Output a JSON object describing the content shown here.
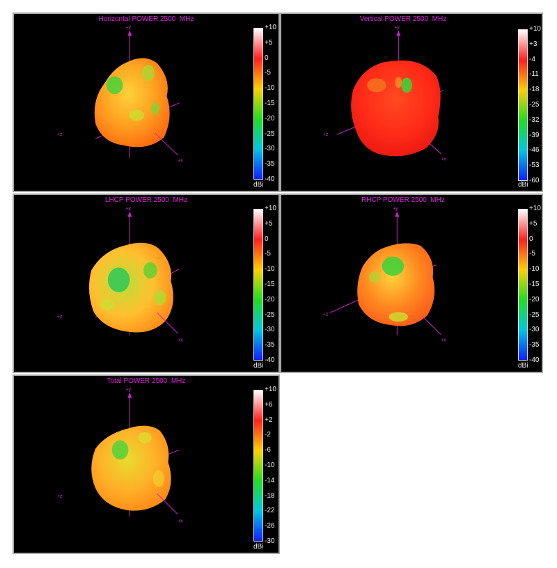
{
  "colors": {
    "axis": "#d020d0",
    "title": "#e020e0",
    "panel_bg": "#000000",
    "panel_border": "#a8a8a8",
    "colorbar_stops": [
      "#ffffff",
      "#ff2020",
      "#ffd000",
      "#22dd22",
      "#00c8e0",
      "#1020ff"
    ]
  },
  "axis_labels": {
    "y": "+y",
    "z": "+z",
    "x": "+x"
  },
  "panels": [
    {
      "id": "horizontal",
      "title": "Horizontal POWER 2500  MHz",
      "unit": "dBi",
      "colorbar_ticks": [
        "+10",
        "+5",
        "0",
        "-5",
        "-10",
        "-15",
        "-20",
        "-25",
        "-30",
        "-35",
        "-40"
      ],
      "dominant_color": "orange"
    },
    {
      "id": "vertical",
      "title": "Vertical POWER 2500  MHz",
      "unit": "dBi",
      "colorbar_ticks": [
        "+10",
        "+3",
        "-4",
        "-11",
        "-18",
        "-25",
        "-32",
        "-39",
        "-46",
        "-53",
        "-60"
      ],
      "dominant_color": "red"
    },
    {
      "id": "lhcp",
      "title": "LHCP POWER 2500  MHz",
      "unit": "dBi",
      "colorbar_ticks": [
        "+10",
        "+5",
        "0",
        "-5",
        "-10",
        "-15",
        "-20",
        "-25",
        "-30",
        "-35",
        "-40"
      ],
      "dominant_color": "yellow-green"
    },
    {
      "id": "rhcp",
      "title": "RHCP POWER 2500  MHz",
      "unit": "dBi",
      "colorbar_ticks": [
        "+10",
        "+5",
        "0",
        "-5",
        "-10",
        "-15",
        "-20",
        "-25",
        "-30",
        "-35",
        "-40"
      ],
      "dominant_color": "orange"
    },
    {
      "id": "total",
      "title": "Total POWER 2500  MHz",
      "unit": "dBi",
      "colorbar_ticks": [
        "+10",
        "+6",
        "+2",
        "-2",
        "-6",
        "-10",
        "-14",
        "-18",
        "-22",
        "-26",
        "-30"
      ],
      "dominant_color": "orange-yellow"
    }
  ],
  "chart_data": [
    {
      "type": "other",
      "title": "Horizontal POWER 2500  MHz",
      "colorbar_label": "dBi",
      "colorbar_range": [
        -40,
        10
      ]
    },
    {
      "type": "other",
      "title": "Vertical POWER 2500  MHz",
      "colorbar_label": "dBi",
      "colorbar_range": [
        -60,
        10
      ]
    },
    {
      "type": "other",
      "title": "LHCP POWER 2500  MHz",
      "colorbar_label": "dBi",
      "colorbar_range": [
        -40,
        10
      ]
    },
    {
      "type": "other",
      "title": "RHCP POWER 2500  MHz",
      "colorbar_label": "dBi",
      "colorbar_range": [
        -40,
        10
      ]
    },
    {
      "type": "other",
      "title": "Total POWER 2500  MHz",
      "colorbar_label": "dBi",
      "colorbar_range": [
        -30,
        10
      ]
    }
  ]
}
